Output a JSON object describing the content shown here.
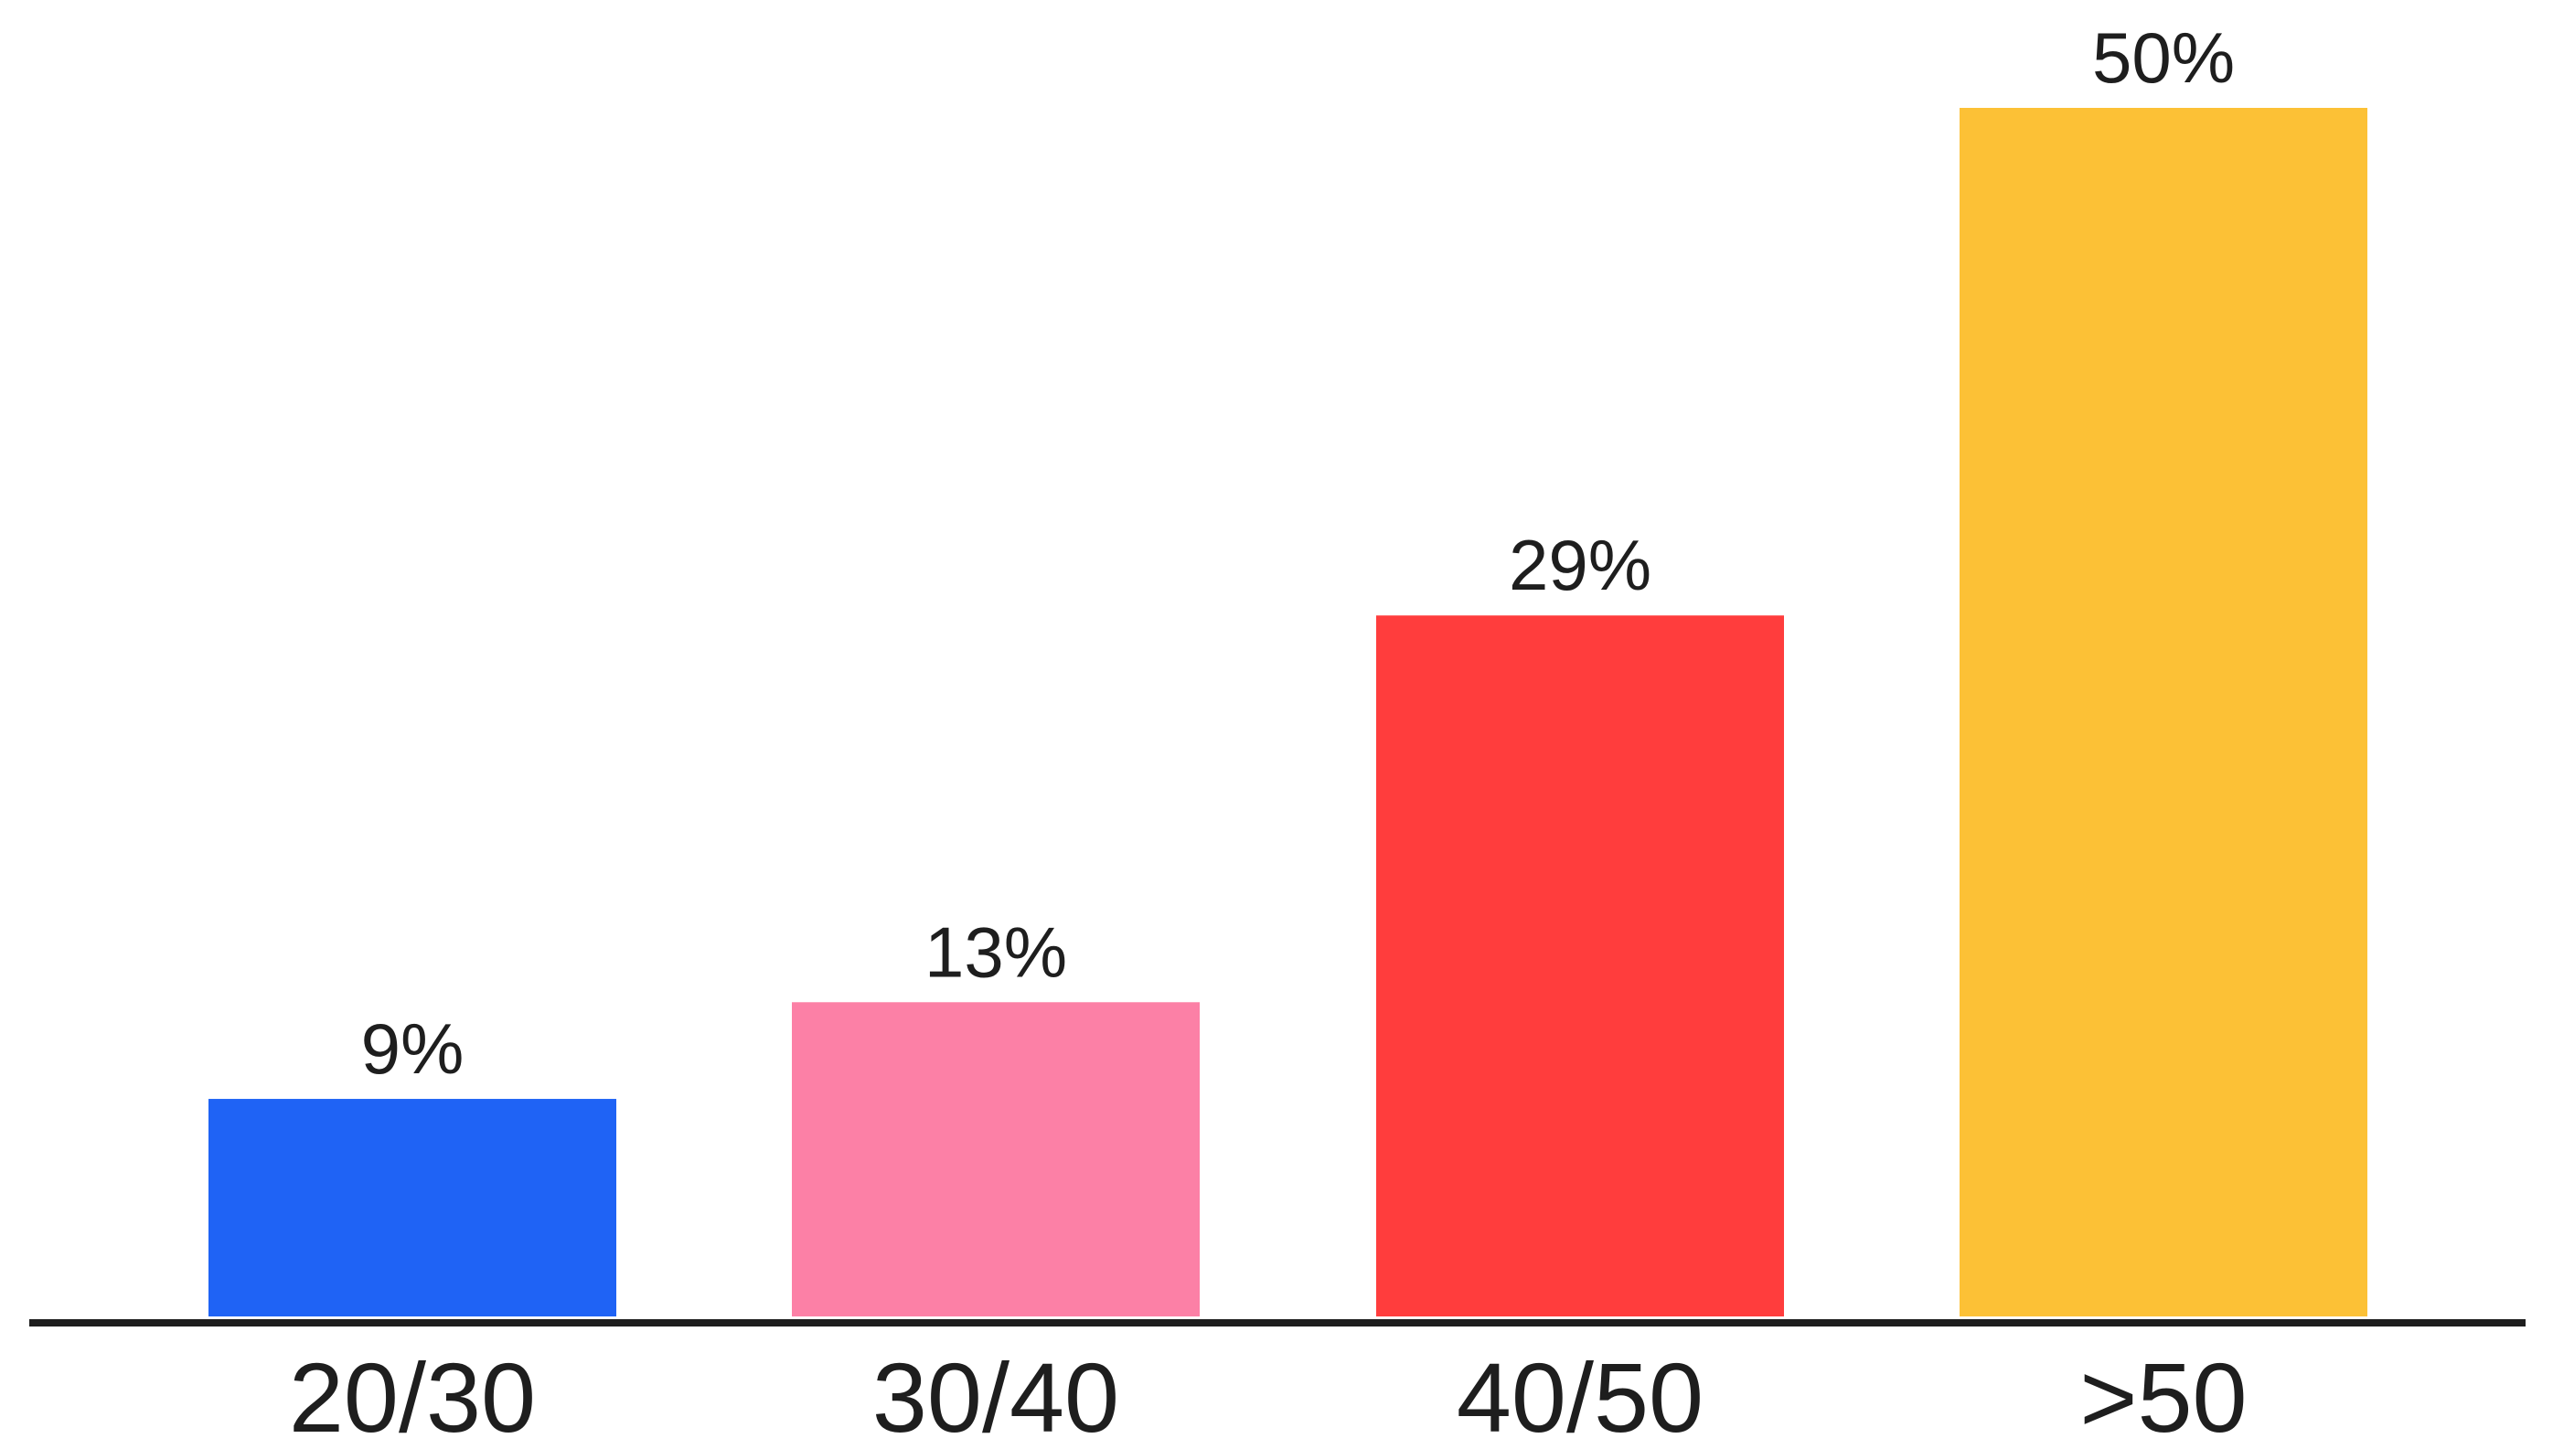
{
  "chart_data": {
    "type": "bar",
    "categories": [
      "20/30",
      "30/40",
      "40/50",
      ">50"
    ],
    "values": [
      9,
      13,
      29,
      50
    ],
    "value_labels": [
      "9%",
      "13%",
      "29%",
      "50%"
    ],
    "colors": [
      "#1F63F5",
      "#FC80A6",
      "#FF3D3D",
      "#FCC136"
    ],
    "baseline_color": "#1e1e1e",
    "title": "",
    "xlabel": "",
    "ylabel": "",
    "ylim": [
      0,
      50
    ],
    "grid": false,
    "legend": "none"
  }
}
